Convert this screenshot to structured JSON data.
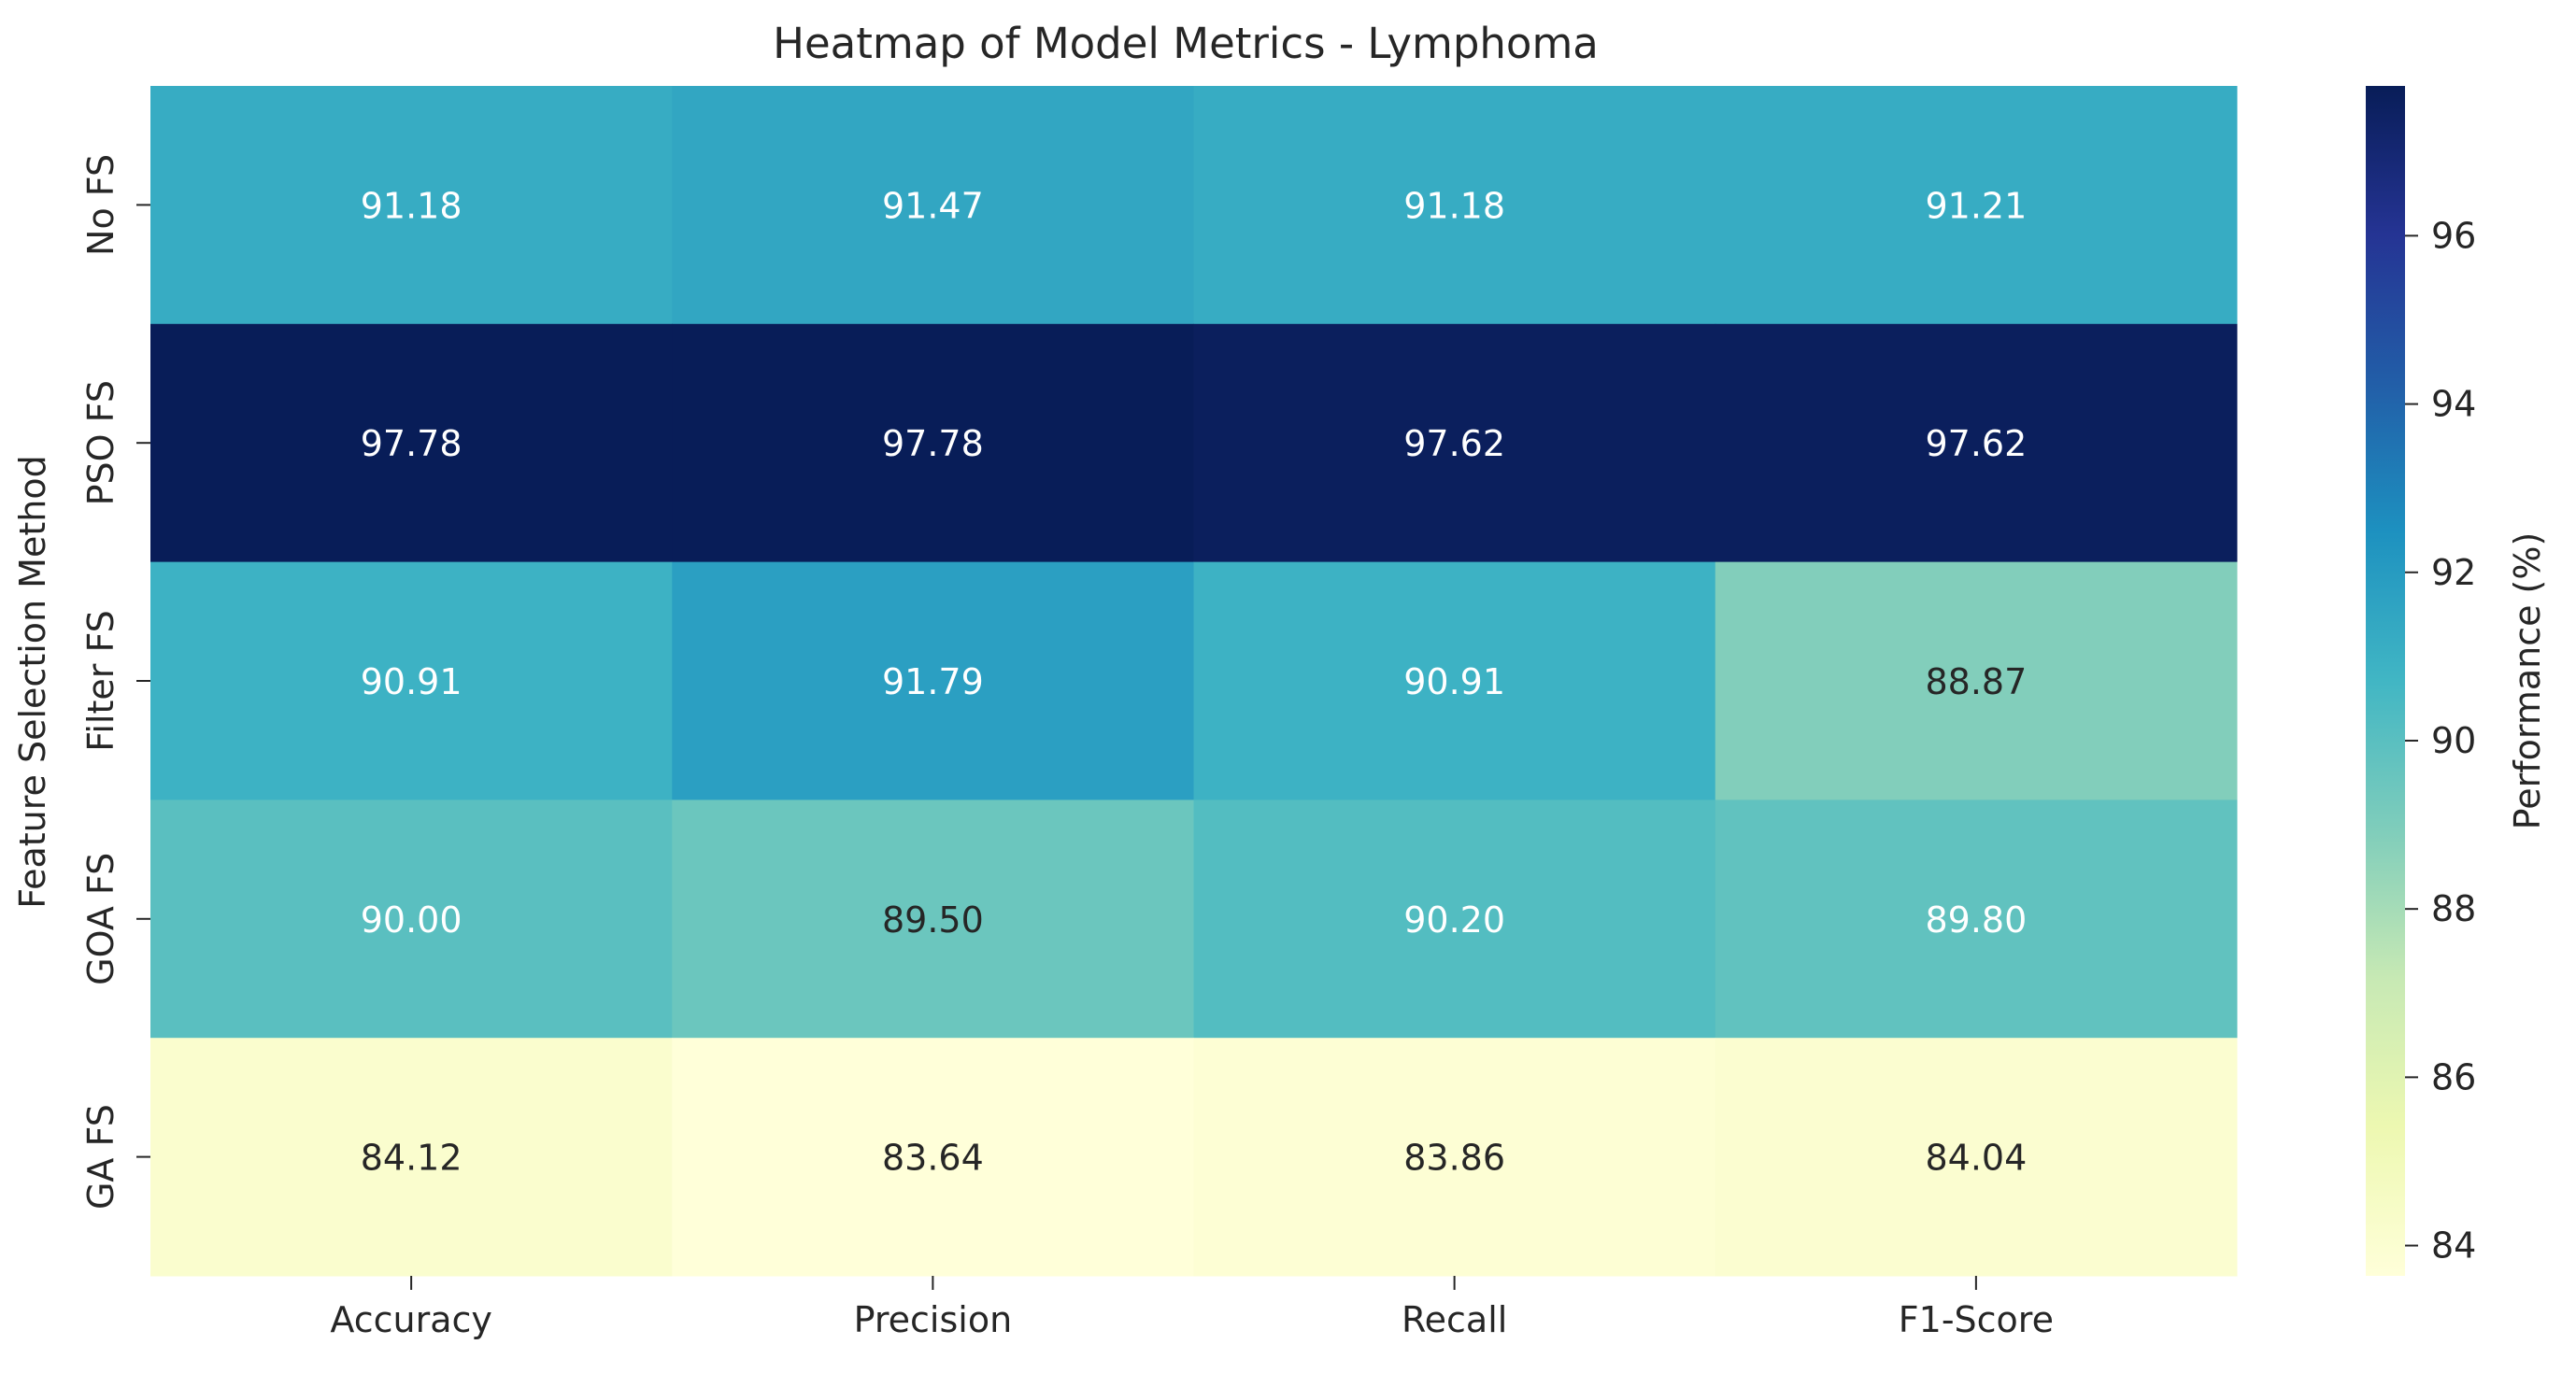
{
  "chart_data": {
    "type": "heatmap",
    "title": "Heatmap of Model Metrics - Lymphoma",
    "xlabel": "",
    "ylabel": "Feature Selection Method",
    "x_categories": [
      "Accuracy",
      "Precision",
      "Recall",
      "F1-Score"
    ],
    "y_categories": [
      "No FS",
      "PSO FS",
      "Filter FS",
      "GOA FS",
      "GA FS"
    ],
    "values": [
      [
        91.18,
        91.47,
        91.18,
        91.21
      ],
      [
        97.78,
        97.78,
        97.62,
        97.62
      ],
      [
        90.91,
        91.79,
        90.91,
        88.87
      ],
      [
        90.0,
        89.5,
        90.2,
        89.8
      ],
      [
        84.12,
        83.64,
        83.86,
        84.04
      ]
    ],
    "value_labels": [
      [
        "91.18",
        "91.47",
        "91.18",
        "91.21"
      ],
      [
        "97.78",
        "97.78",
        "97.62",
        "97.62"
      ],
      [
        "90.91",
        "91.79",
        "90.91",
        "88.87"
      ],
      [
        "90.00",
        "89.50",
        "90.20",
        "89.80"
      ],
      [
        "84.12",
        "83.64",
        "83.86",
        "84.04"
      ]
    ],
    "colormap": "YlGnBu",
    "vmin": 83.64,
    "vmax": 97.78,
    "colorbar": {
      "label": "Performance (%)",
      "ticks": [
        84,
        86,
        88,
        90,
        92,
        94,
        96
      ],
      "tick_labels": [
        "84",
        "86",
        "88",
        "90",
        "92",
        "94",
        "96"
      ]
    },
    "grid": false,
    "legend": "colorbar-right"
  }
}
